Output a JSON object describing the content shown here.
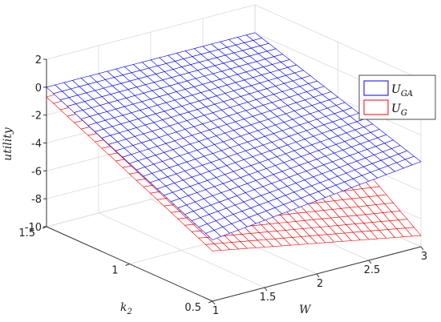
{
  "chart_data": {
    "type": "surface",
    "xlabel": "W",
    "ylabel": "k",
    "ylabel_sub": "2",
    "zlabel": "utility",
    "xlim": [
      1,
      3
    ],
    "ylim": [
      0.5,
      1.5
    ],
    "zlim": [
      -10,
      2
    ],
    "x_ticks": [
      "1",
      "1.5",
      "2",
      "2.5",
      "3"
    ],
    "y_ticks": [
      "0.5",
      "1",
      "1.5"
    ],
    "z_ticks": [
      "2",
      "0",
      "-2",
      "-4",
      "-6",
      "-8",
      "-10"
    ],
    "grid": true,
    "legend_position": "top-right",
    "series": [
      {
        "name": "U_GA",
        "name_main": "U",
        "name_sub": "GA",
        "color": "#0000ff",
        "corners": {
          "W1_k1.5": 0.0,
          "W3_k1.5": 0.0,
          "W1_k0.5": -5.6,
          "W3_k0.5": -3.9
        }
      },
      {
        "name": "U_G",
        "name_main": "U",
        "name_sub": "G",
        "color": "#ff0000",
        "corners": {
          "W1_k1.5": -0.7,
          "W3_k1.5": -0.5,
          "W1_k0.5": -6.4,
          "W3_k0.5": -9.2
        }
      }
    ]
  }
}
